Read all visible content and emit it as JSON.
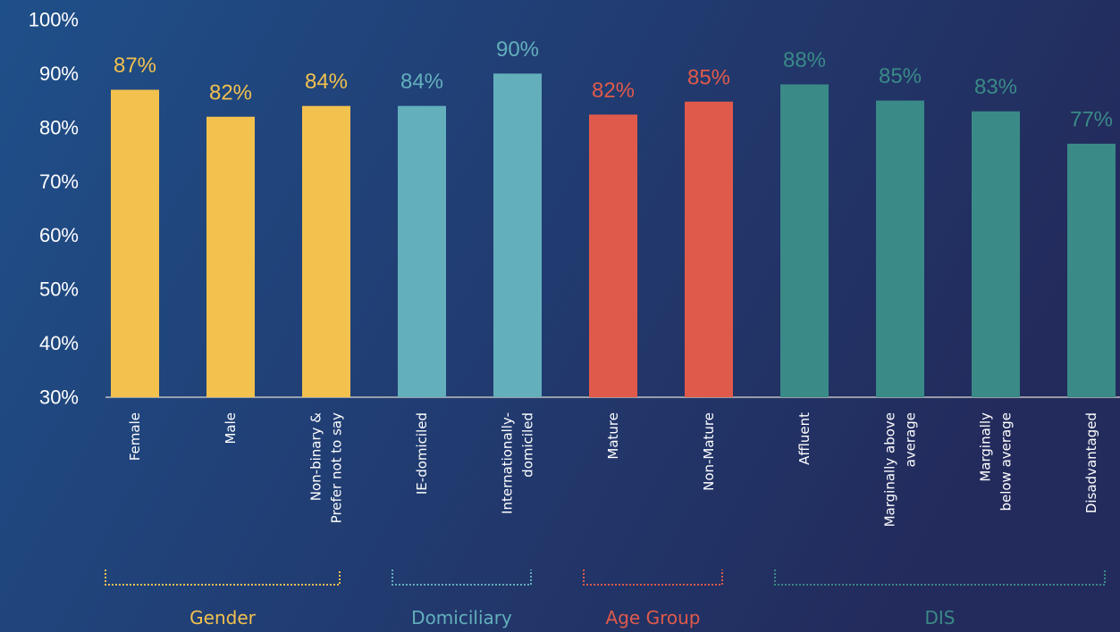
{
  "chart_data": {
    "type": "bar",
    "categories": [
      "Female",
      "Male",
      "Non-binary &\nPrefer not to say",
      "IE-domiciled",
      "Internationally-\ndomiciled",
      "Mature",
      "Non-Mature",
      "Affluent",
      "Marginally above\naverage",
      "Marginally\nbelow average",
      "Disadvantaged"
    ],
    "series": [
      {
        "name": "Gender",
        "color": "#f2c14e",
        "values": [
          87,
          82,
          84,
          null,
          null,
          null,
          null,
          null,
          null,
          null,
          null
        ],
        "value_labels": [
          "87%",
          "82%",
          "84%",
          null,
          null,
          null,
          null,
          null,
          null,
          null,
          null
        ]
      },
      {
        "name": "Domiciliary",
        "color": "#63afbc",
        "values": [
          null,
          null,
          null,
          84,
          90,
          null,
          null,
          null,
          null,
          null,
          null
        ],
        "value_labels": [
          null,
          null,
          null,
          "84%",
          "90%",
          null,
          null,
          null,
          null,
          null,
          null
        ]
      },
      {
        "name": "Age Group",
        "color": "#e05a4b",
        "values": [
          null,
          null,
          null,
          null,
          null,
          82.4,
          84.8,
          null,
          null,
          null,
          null
        ],
        "value_labels": [
          null,
          null,
          null,
          null,
          null,
          "82%",
          "85%",
          null,
          null,
          null,
          null
        ]
      },
      {
        "name": "DIS",
        "color": "#3a8a87",
        "values": [
          null,
          null,
          null,
          null,
          null,
          null,
          null,
          88,
          85,
          83,
          77
        ],
        "value_labels": [
          null,
          null,
          null,
          null,
          null,
          null,
          null,
          "88%",
          "85%",
          "83%",
          "77%"
        ]
      }
    ],
    "ylim": [
      30,
      100
    ],
    "yticks": [
      {
        "value": 30,
        "label": "30%"
      },
      {
        "value": 40,
        "label": "40%"
      },
      {
        "value": 50,
        "label": "50%"
      },
      {
        "value": 60,
        "label": "60%"
      },
      {
        "value": 70,
        "label": "70%"
      },
      {
        "value": 80,
        "label": "80%"
      },
      {
        "value": 90,
        "label": "90%"
      },
      {
        "value": 100,
        "label": "100%"
      }
    ],
    "grid": false
  }
}
